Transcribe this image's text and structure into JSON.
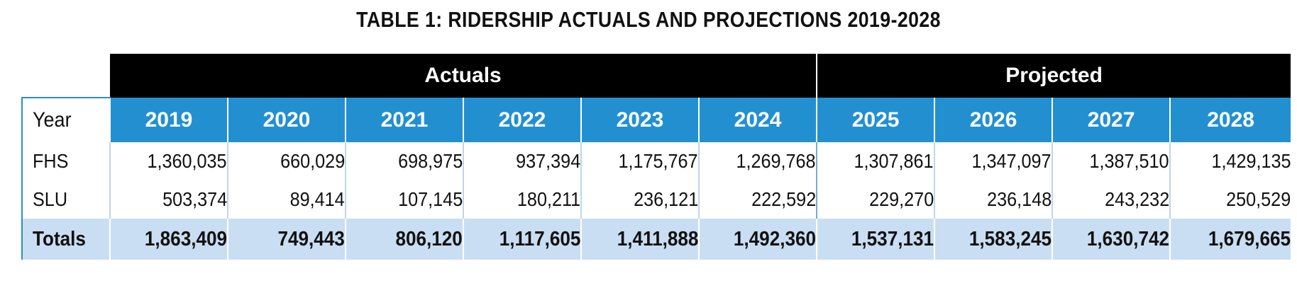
{
  "title": "TABLE 1: RIDERSHIP ACTUALS AND PROJECTIONS 2019-2028",
  "groups": {
    "actuals": "Actuals",
    "projected": "Projected"
  },
  "header_label": "Year",
  "years": [
    "2019",
    "2020",
    "2021",
    "2022",
    "2023",
    "2024",
    "2025",
    "2026",
    "2027",
    "2028"
  ],
  "rows": [
    {
      "label": "FHS",
      "values": [
        "1,360,035",
        "660,029",
        "698,975",
        "937,394",
        "1,175,767",
        "1,269,768",
        "1,307,861",
        "1,347,097",
        "1,387,510",
        "1,429,135"
      ]
    },
    {
      "label": "SLU",
      "values": [
        "503,374",
        "89,414",
        "107,145",
        "180,211",
        "236,121",
        "222,592",
        "229,270",
        "236,148",
        "243,232",
        "250,529"
      ]
    }
  ],
  "totals": {
    "label": "Totals",
    "values": [
      "1,863,409",
      "749,443",
      "806,120",
      "1,117,605",
      "1,411,888",
      "1,492,360",
      "1,537,131",
      "1,583,245",
      "1,630,742",
      "1,679,665"
    ]
  },
  "colors": {
    "header_black": "#000000",
    "year_blue": "#2290d0",
    "totals_fill": "#c9def2"
  }
}
